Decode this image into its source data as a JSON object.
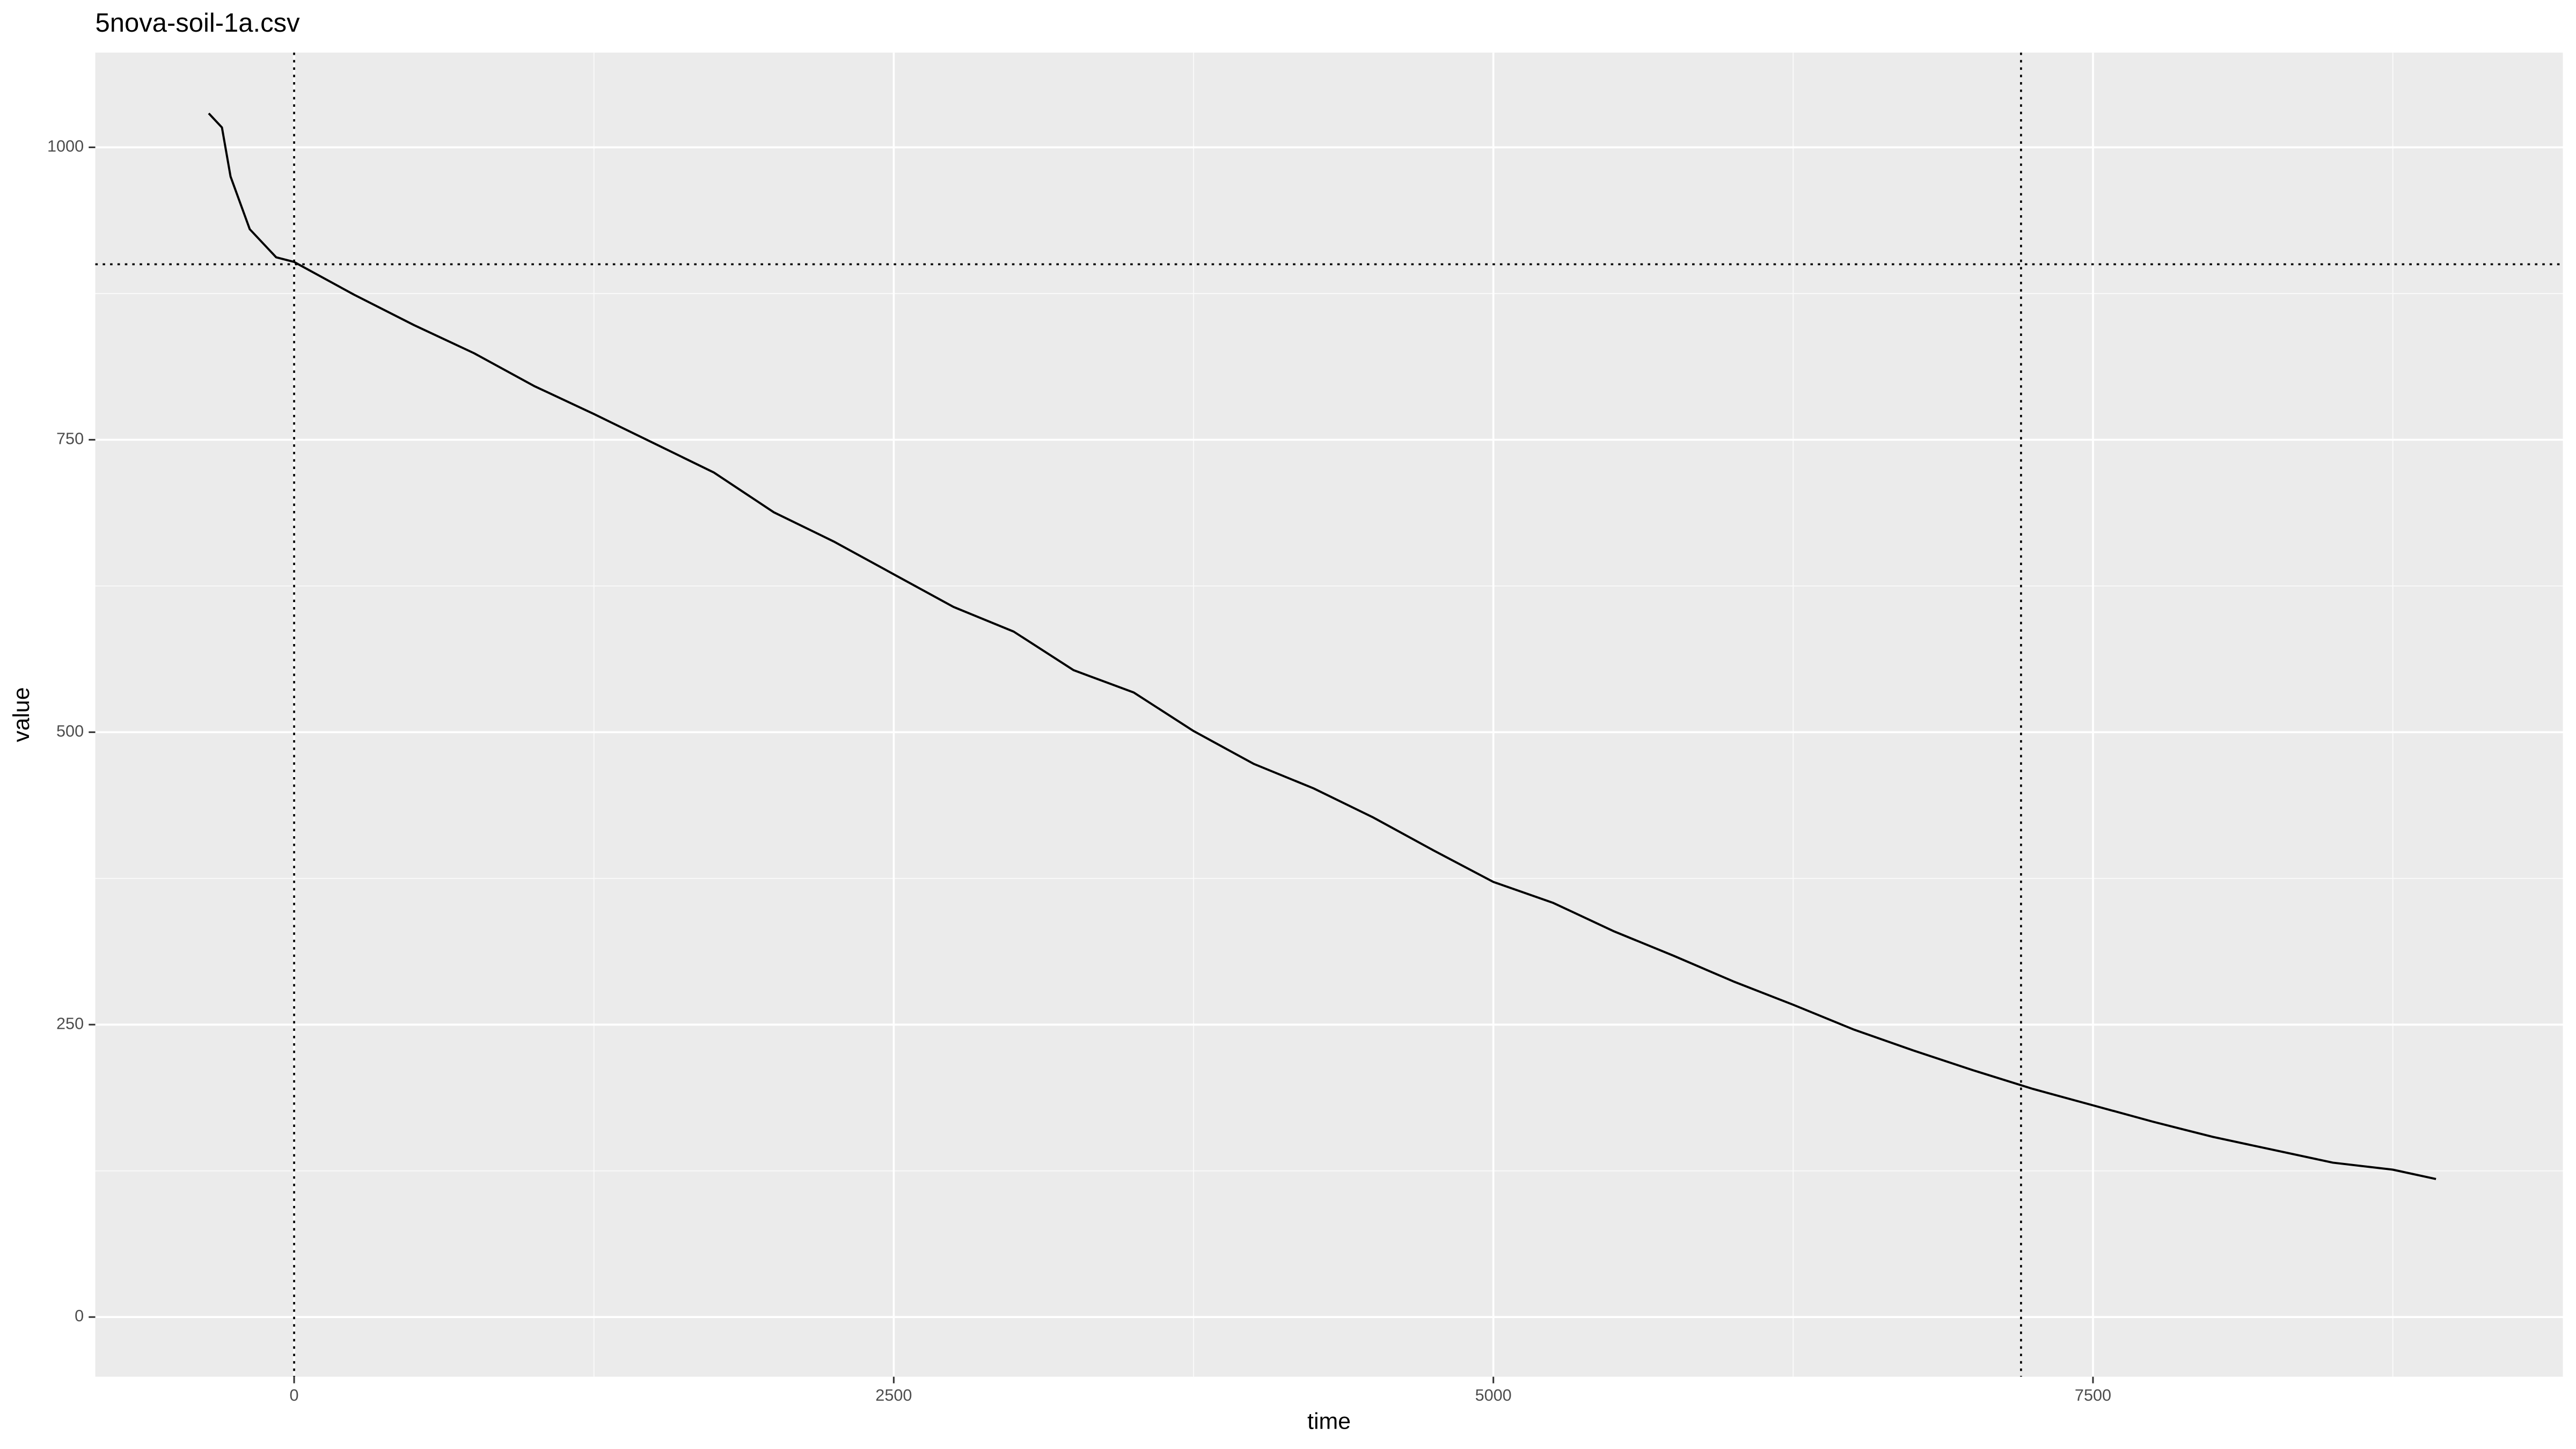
{
  "chart_data": {
    "type": "line",
    "title": "5nova-soil-1a.csv",
    "x_label": "time",
    "y_label": "value",
    "x": [
      -356,
      -301,
      -265,
      -185,
      -75,
      0,
      250,
      500,
      750,
      1000,
      1250,
      1500,
      1750,
      2000,
      2250,
      2500,
      2750,
      3000,
      3250,
      3500,
      3750,
      4000,
      4250,
      4500,
      4750,
      5000,
      5250,
      5500,
      5750,
      6000,
      6250,
      6500,
      6750,
      7000,
      7250,
      7500,
      7750,
      8000,
      8250,
      8500,
      8750,
      8930
    ],
    "series": [
      {
        "color": "#000000",
        "values": [
          1029,
          1017,
          975,
          930,
          906,
          902,
          874,
          848,
          824,
          796,
          772,
          747,
          722,
          688,
          663,
          635,
          607,
          586,
          553,
          534,
          501,
          473,
          452,
          427,
          399,
          372,
          354,
          330,
          309,
          287,
          267,
          246,
          228,
          211,
          195,
          181,
          167,
          154,
          143,
          132,
          126,
          118
        ]
      }
    ],
    "xlim": [
      -829,
      9459
    ],
    "ylim": [
      -51,
      1081
    ],
    "xticks": [
      0,
      2500,
      5000,
      7500
    ],
    "yticks": [
      0,
      250,
      500,
      750,
      1000
    ],
    "x_minor_ticks": [
      1250,
      3750,
      6250,
      8750
    ],
    "y_minor_ticks": [
      125,
      375,
      625,
      875
    ],
    "vlines": [
      0,
      7200
    ],
    "hlines": [
      900
    ],
    "grid": true
  }
}
